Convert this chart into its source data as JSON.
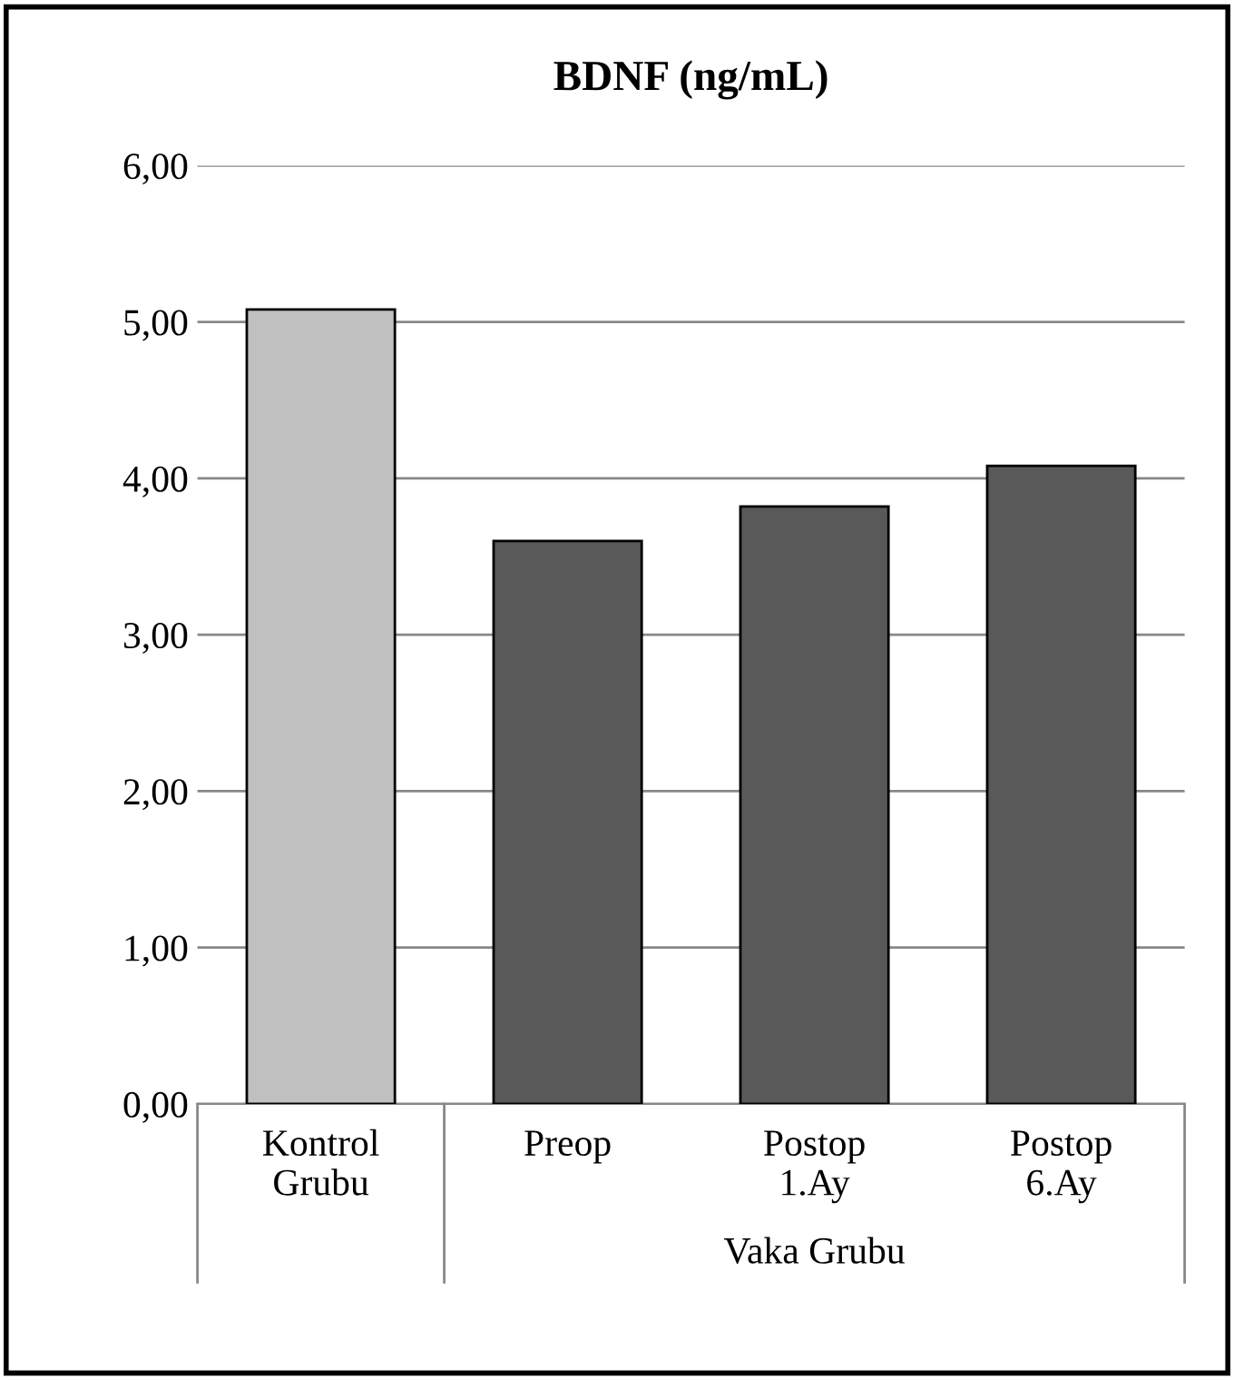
{
  "chart_data": {
    "type": "bar",
    "title": "BDNF (ng/mL)",
    "categories": [
      "Kontrol\nGrubu",
      "Preop",
      "Postop\n1.Ay",
      "Postop\n6.Ay"
    ],
    "values": [
      5.08,
      3.6,
      3.82,
      4.08
    ],
    "colors": [
      "#c0c0c0",
      "#595959",
      "#595959",
      "#595959"
    ],
    "ylim": [
      0,
      6
    ],
    "yticks": [
      {
        "value": 0,
        "label": "0,00"
      },
      {
        "value": 1,
        "label": "1,00"
      },
      {
        "value": 2,
        "label": "2,00"
      },
      {
        "value": 3,
        "label": "3,00"
      },
      {
        "value": 4,
        "label": "4,00"
      },
      {
        "value": 5,
        "label": "5,00"
      },
      {
        "value": 6,
        "label": "6,00"
      }
    ],
    "grid": "y",
    "annotations": [
      "Vaka Grubu"
    ]
  }
}
